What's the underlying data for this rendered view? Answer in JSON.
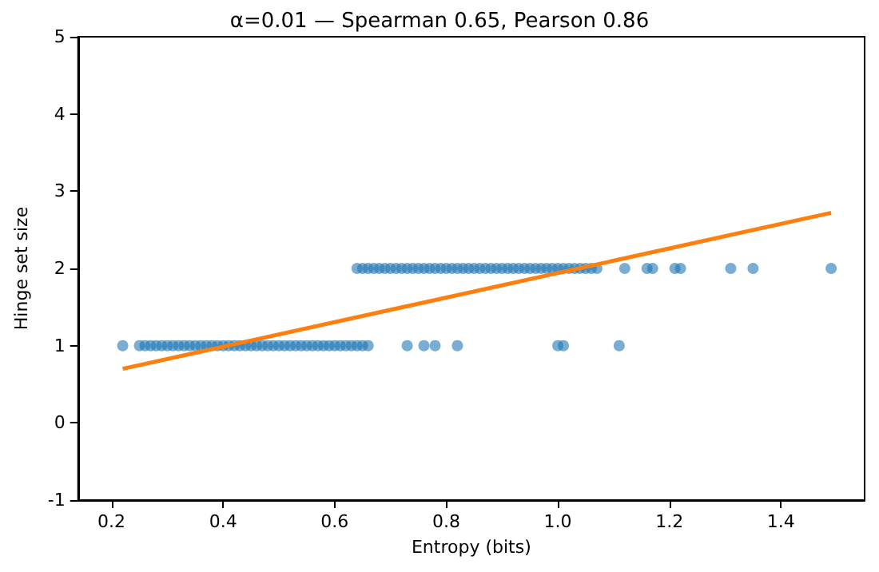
{
  "chart_data": {
    "type": "scatter",
    "title": "α=0.01 — Spearman 0.65, Pearson 0.86",
    "xlabel": "Entropy (bits)",
    "ylabel": "Hinge set size",
    "xlim": [
      0.14,
      1.55
    ],
    "xticks": [
      0.2,
      0.4,
      0.6,
      0.8,
      {
        "value": 1.0,
        "label": "1.0"
      },
      1.2,
      1.4
    ],
    "ylim": [
      -1,
      5
    ],
    "yticks": [
      -1,
      0,
      1,
      2,
      3,
      4,
      5
    ],
    "grid": false,
    "series": [
      {
        "marker": "circle",
        "color": "#1f77b4",
        "x": [
          0.22,
          0.25,
          0.26,
          0.27,
          0.28,
          0.29,
          0.3,
          0.31,
          0.32,
          0.33,
          0.34,
          0.35,
          0.36,
          0.37,
          0.38,
          0.39,
          0.4,
          0.41,
          0.42,
          0.43,
          0.44,
          0.45,
          0.46,
          0.47,
          0.48,
          0.49,
          0.5,
          0.51,
          0.52,
          0.53,
          0.54,
          0.55,
          0.56,
          0.57,
          0.58,
          0.59,
          0.6,
          0.61,
          0.62,
          0.63,
          0.64,
          0.65,
          0.66,
          0.73,
          0.76,
          0.78,
          0.82,
          1.0,
          1.01,
          1.11,
          0.64,
          0.65,
          0.66,
          0.67,
          0.68,
          0.69,
          0.7,
          0.71,
          0.72,
          0.73,
          0.74,
          0.75,
          0.76,
          0.77,
          0.78,
          0.79,
          0.8,
          0.81,
          0.82,
          0.83,
          0.84,
          0.85,
          0.86,
          0.87,
          0.88,
          0.89,
          0.9,
          0.91,
          0.92,
          0.93,
          0.94,
          0.95,
          0.96,
          0.97,
          0.98,
          0.99,
          1.0,
          1.01,
          1.02,
          1.03,
          1.04,
          1.05,
          1.06,
          1.07,
          1.12,
          1.16,
          1.17,
          1.21,
          1.22,
          1.31,
          1.35,
          1.49
        ],
        "values": [
          1,
          1,
          1,
          1,
          1,
          1,
          1,
          1,
          1,
          1,
          1,
          1,
          1,
          1,
          1,
          1,
          1,
          1,
          1,
          1,
          1,
          1,
          1,
          1,
          1,
          1,
          1,
          1,
          1,
          1,
          1,
          1,
          1,
          1,
          1,
          1,
          1,
          1,
          1,
          1,
          1,
          1,
          1,
          1,
          1,
          1,
          1,
          1,
          1,
          1,
          2,
          2,
          2,
          2,
          2,
          2,
          2,
          2,
          2,
          2,
          2,
          2,
          2,
          2,
          2,
          2,
          2,
          2,
          2,
          2,
          2,
          2,
          2,
          2,
          2,
          2,
          2,
          2,
          2,
          2,
          2,
          2,
          2,
          2,
          2,
          2,
          2,
          2,
          2,
          2,
          2,
          2,
          2,
          2,
          2,
          2,
          2,
          2,
          2,
          2,
          2,
          2
        ]
      },
      {
        "type": "line",
        "color": "#ff7f0e",
        "x": [
          0.22,
          1.49
        ],
        "values": [
          0.7,
          2.72
        ]
      }
    ]
  }
}
